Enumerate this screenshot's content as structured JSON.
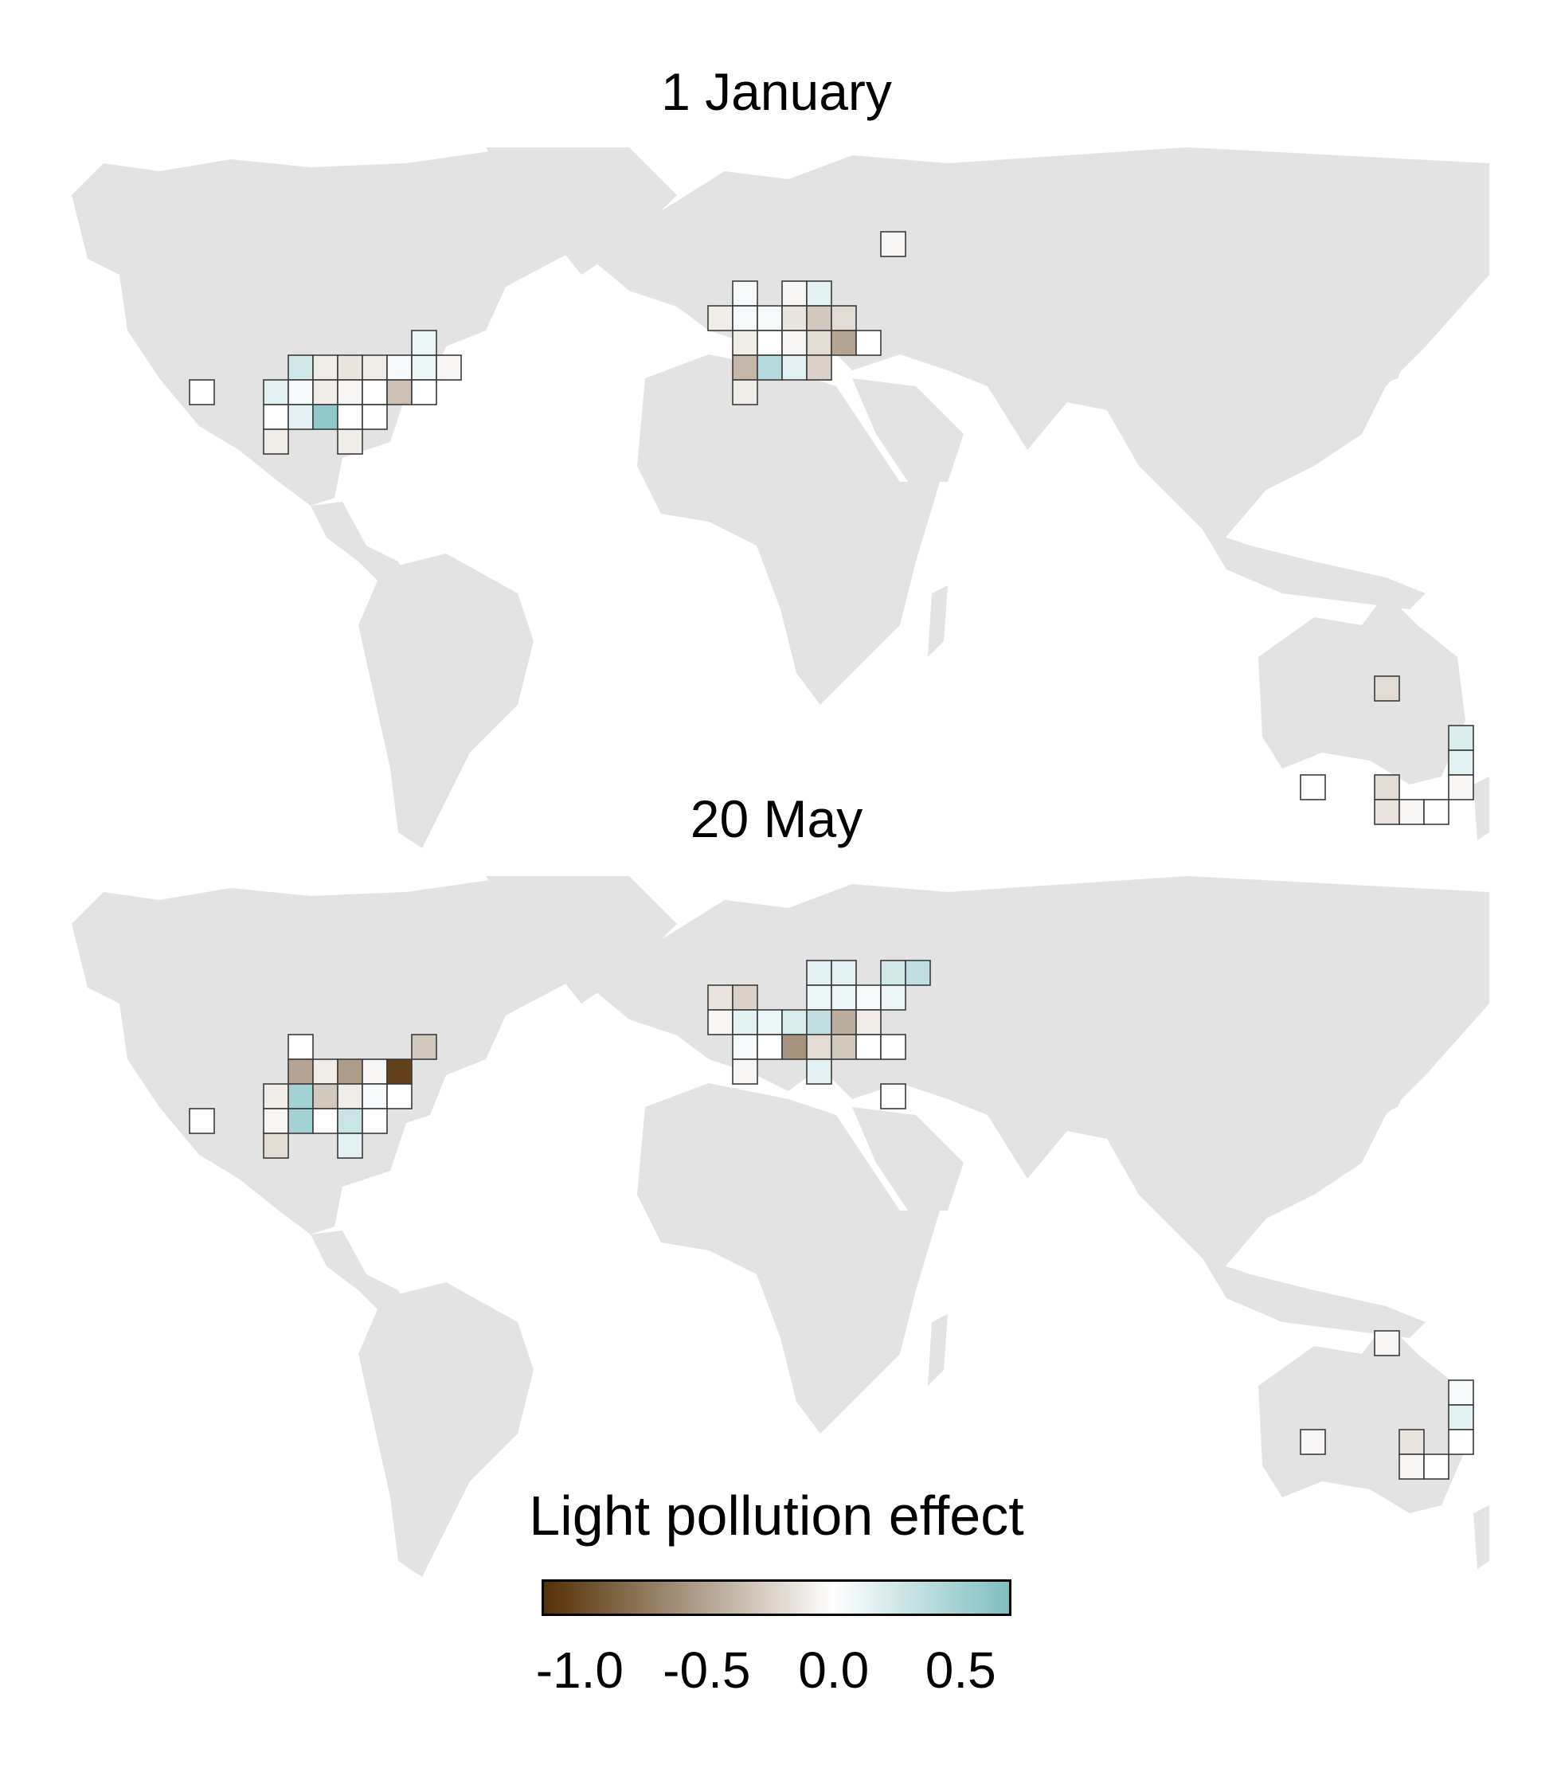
{
  "panels": [
    {
      "title": "1 January",
      "cells": [
        {
          "col": 2,
          "row": 6,
          "v": 0.0
        },
        {
          "col": 6,
          "row": 5,
          "v": 0.25
        },
        {
          "col": 7,
          "row": 5,
          "v": -0.1
        },
        {
          "col": 8,
          "row": 5,
          "v": -0.15
        },
        {
          "col": 9,
          "row": 5,
          "v": -0.1
        },
        {
          "col": 10,
          "row": 5,
          "v": 0.05
        },
        {
          "col": 11,
          "row": 5,
          "v": 0.1
        },
        {
          "col": 12,
          "row": 5,
          "v": -0.05
        },
        {
          "col": 5,
          "row": 6,
          "v": 0.15
        },
        {
          "col": 6,
          "row": 6,
          "v": 0.05
        },
        {
          "col": 7,
          "row": 6,
          "v": -0.1
        },
        {
          "col": 8,
          "row": 6,
          "v": -0.05
        },
        {
          "col": 9,
          "row": 6,
          "v": 0.0
        },
        {
          "col": 10,
          "row": 6,
          "v": -0.35
        },
        {
          "col": 11,
          "row": 6,
          "v": 0.0
        },
        {
          "col": 5,
          "row": 7,
          "v": 0.0
        },
        {
          "col": 6,
          "row": 7,
          "v": 0.15
        },
        {
          "col": 7,
          "row": 7,
          "v": 0.6
        },
        {
          "col": 8,
          "row": 7,
          "v": 0.0
        },
        {
          "col": 9,
          "row": 7,
          "v": 0.0
        },
        {
          "col": 5,
          "row": 8,
          "v": -0.1
        },
        {
          "col": 8,
          "row": 8,
          "v": -0.1
        },
        {
          "col": 11,
          "row": 4,
          "v": 0.1
        },
        {
          "col": 24,
          "row": 2,
          "v": 0.05
        },
        {
          "col": 26,
          "row": 2,
          "v": -0.05
        },
        {
          "col": 27,
          "row": 2,
          "v": 0.15
        },
        {
          "col": 23,
          "row": 3,
          "v": -0.1
        },
        {
          "col": 24,
          "row": 3,
          "v": 0.05
        },
        {
          "col": 25,
          "row": 3,
          "v": 0.05
        },
        {
          "col": 26,
          "row": 3,
          "v": -0.15
        },
        {
          "col": 27,
          "row": 3,
          "v": -0.3
        },
        {
          "col": 28,
          "row": 3,
          "v": -0.2
        },
        {
          "col": 24,
          "row": 4,
          "v": -0.1
        },
        {
          "col": 25,
          "row": 4,
          "v": 0.0
        },
        {
          "col": 26,
          "row": 4,
          "v": -0.05
        },
        {
          "col": 27,
          "row": 4,
          "v": -0.2
        },
        {
          "col": 28,
          "row": 4,
          "v": -0.5
        },
        {
          "col": 29,
          "row": 4,
          "v": 0.0
        },
        {
          "col": 24,
          "row": 5,
          "v": -0.4
        },
        {
          "col": 25,
          "row": 5,
          "v": 0.4
        },
        {
          "col": 26,
          "row": 5,
          "v": 0.15
        },
        {
          "col": 27,
          "row": 5,
          "v": -0.25
        },
        {
          "col": 24,
          "row": 6,
          "v": -0.1
        },
        {
          "col": 30,
          "row": 0,
          "v": -0.05
        },
        {
          "col": 50,
          "row": 18,
          "v": -0.2
        },
        {
          "col": 53,
          "row": 20,
          "v": 0.2
        },
        {
          "col": 53,
          "row": 21,
          "v": 0.15
        },
        {
          "col": 47,
          "row": 22,
          "v": 0.0
        },
        {
          "col": 50,
          "row": 22,
          "v": -0.2
        },
        {
          "col": 53,
          "row": 22,
          "v": -0.05
        },
        {
          "col": 50,
          "row": 23,
          "v": -0.15
        },
        {
          "col": 51,
          "row": 23,
          "v": -0.05
        },
        {
          "col": 52,
          "row": 23,
          "v": 0.0
        }
      ]
    },
    {
      "title": "20 May",
      "cells": [
        {
          "col": 2,
          "row": 6,
          "v": 0.0
        },
        {
          "col": 6,
          "row": 3,
          "v": 0.0
        },
        {
          "col": 11,
          "row": 3,
          "v": -0.3
        },
        {
          "col": 6,
          "row": 4,
          "v": -0.5
        },
        {
          "col": 7,
          "row": 4,
          "v": -0.1
        },
        {
          "col": 8,
          "row": 4,
          "v": -0.55
        },
        {
          "col": 9,
          "row": 4,
          "v": -0.05
        },
        {
          "col": 10,
          "row": 4,
          "v": -1.05
        },
        {
          "col": 5,
          "row": 5,
          "v": -0.1
        },
        {
          "col": 6,
          "row": 5,
          "v": 0.5
        },
        {
          "col": 7,
          "row": 5,
          "v": -0.3
        },
        {
          "col": 8,
          "row": 5,
          "v": -0.1
        },
        {
          "col": 9,
          "row": 5,
          "v": 0.05
        },
        {
          "col": 10,
          "row": 5,
          "v": 0.0
        },
        {
          "col": 5,
          "row": 6,
          "v": -0.05
        },
        {
          "col": 6,
          "row": 6,
          "v": 0.5
        },
        {
          "col": 7,
          "row": 6,
          "v": 0.0
        },
        {
          "col": 8,
          "row": 6,
          "v": 0.3
        },
        {
          "col": 9,
          "row": 6,
          "v": 0.0
        },
        {
          "col": 5,
          "row": 7,
          "v": -0.2
        },
        {
          "col": 8,
          "row": 7,
          "v": 0.15
        },
        {
          "col": 27,
          "row": 0,
          "v": 0.15
        },
        {
          "col": 28,
          "row": 0,
          "v": 0.15
        },
        {
          "col": 30,
          "row": 0,
          "v": 0.25
        },
        {
          "col": 31,
          "row": 0,
          "v": 0.35
        },
        {
          "col": 23,
          "row": 1,
          "v": -0.15
        },
        {
          "col": 24,
          "row": 1,
          "v": -0.25
        },
        {
          "col": 27,
          "row": 1,
          "v": 0.1
        },
        {
          "col": 28,
          "row": 1,
          "v": 0.1
        },
        {
          "col": 29,
          "row": 1,
          "v": 0.05
        },
        {
          "col": 30,
          "row": 1,
          "v": 0.1
        },
        {
          "col": 23,
          "row": 2,
          "v": -0.05
        },
        {
          "col": 24,
          "row": 2,
          "v": 0.15
        },
        {
          "col": 25,
          "row": 2,
          "v": 0.1
        },
        {
          "col": 26,
          "row": 2,
          "v": 0.2
        },
        {
          "col": 27,
          "row": 2,
          "v": 0.35
        },
        {
          "col": 28,
          "row": 2,
          "v": -0.45
        },
        {
          "col": 29,
          "row": 2,
          "v": -0.1
        },
        {
          "col": 24,
          "row": 3,
          "v": 0.05
        },
        {
          "col": 25,
          "row": 3,
          "v": 0.0
        },
        {
          "col": 26,
          "row": 3,
          "v": -0.6
        },
        {
          "col": 27,
          "row": 3,
          "v": -0.2
        },
        {
          "col": 28,
          "row": 3,
          "v": -0.3
        },
        {
          "col": 29,
          "row": 3,
          "v": 0.0
        },
        {
          "col": 30,
          "row": 3,
          "v": 0.0
        },
        {
          "col": 24,
          "row": 4,
          "v": -0.05
        },
        {
          "col": 27,
          "row": 4,
          "v": 0.15
        },
        {
          "col": 30,
          "row": 5,
          "v": 0.0
        },
        {
          "col": 50,
          "row": 15,
          "v": -0.05
        },
        {
          "col": 53,
          "row": 17,
          "v": 0.05
        },
        {
          "col": 53,
          "row": 18,
          "v": 0.15
        },
        {
          "col": 53,
          "row": 19,
          "v": 0.0
        },
        {
          "col": 47,
          "row": 19,
          "v": -0.05
        },
        {
          "col": 51,
          "row": 19,
          "v": -0.15
        },
        {
          "col": 51,
          "row": 20,
          "v": -0.05
        },
        {
          "col": 52,
          "row": 20,
          "v": 0.0
        }
      ]
    }
  ],
  "legend": {
    "title": "Light pollution effect",
    "range": [
      -1.15,
      0.7
    ],
    "ticks": [
      {
        "label": "-1.0",
        "value": -1.0
      },
      {
        "label": "-0.5",
        "value": -0.5
      },
      {
        "label": "0.0",
        "value": 0.0
      },
      {
        "label": "0.5",
        "value": 0.5
      }
    ],
    "colors": {
      "negative": "#543005",
      "neutral": "#ffffff",
      "positive": "#7fbfc0"
    },
    "land_color": "#e3e3e3"
  }
}
